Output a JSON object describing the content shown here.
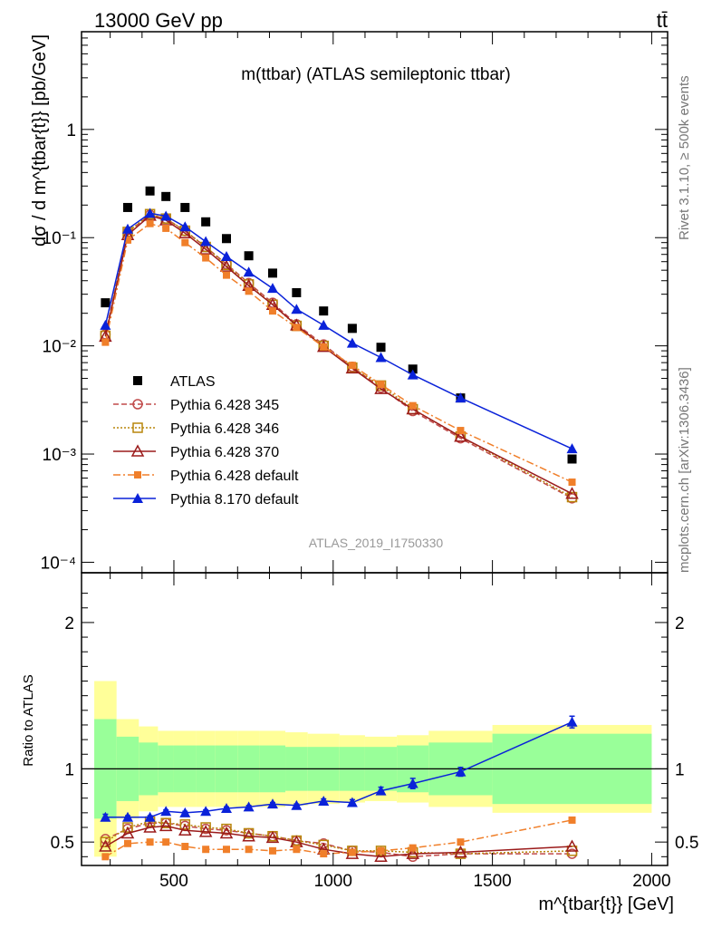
{
  "header": {
    "left_label": "13000 GeV pp",
    "right_label": "tt̄"
  },
  "side_labels": {
    "rivet": "Rivet 3.1.10, ≥ 500k events",
    "mcplots": "mcplots.cern.ch [arXiv:1306.3436]"
  },
  "chart_data": [
    {
      "type": "scatter",
      "title": "m(ttbar) (ATLAS semileptonic ttbar)",
      "watermark": "ATLAS_2019_I1750330",
      "ylabel": "dσ / d m^{tbar{t}} [pb/GeV]",
      "xlabel": "m^{tbar{t}} [GeV]",
      "y_scale": "log",
      "ylim": [
        8e-05,
        8
      ],
      "xlim": [
        210,
        2050
      ],
      "yticks": [
        {
          "value": 0.0001,
          "label": "10⁻⁴"
        },
        {
          "value": 0.001,
          "label": "10⁻³"
        },
        {
          "value": 0.01,
          "label": "10⁻²"
        },
        {
          "value": 0.1,
          "label": "10⁻¹"
        },
        {
          "value": 1,
          "label": "1"
        }
      ],
      "x": [
        285,
        355,
        425,
        475,
        535,
        600,
        665,
        735,
        810,
        885,
        970,
        1060,
        1150,
        1250,
        1400,
        1750
      ],
      "legend_position": "lower-left",
      "series": [
        {
          "name": "ATLAS",
          "color": "#000000",
          "marker": "square-filled",
          "line": "none",
          "values": [
            0.025,
            0.19,
            0.27,
            0.24,
            0.19,
            0.14,
            0.098,
            0.068,
            0.047,
            0.031,
            0.021,
            0.0145,
            0.0097,
            0.0061,
            0.0033,
            0.0009
          ]
        },
        {
          "name": "Pythia 6.428 345",
          "color": "#c04a4a",
          "marker": "circle-open",
          "line": "dashed",
          "values": [
            0.0128,
            0.112,
            0.163,
            0.15,
            0.115,
            0.082,
            0.057,
            0.038,
            0.025,
            0.0158,
            0.0103,
            0.0064,
            0.0041,
            0.0025,
            0.0014,
            0.00039
          ]
        },
        {
          "name": "Pythia 6.428 346",
          "color": "#b8860b",
          "marker": "square-open",
          "line": "dotted",
          "values": [
            0.0124,
            0.113,
            0.165,
            0.15,
            0.116,
            0.082,
            0.056,
            0.037,
            0.024,
            0.0153,
            0.01,
            0.0063,
            0.0043,
            0.0026,
            0.00145,
            0.0004
          ]
        },
        {
          "name": "Pythia 6.428 370",
          "color": "#9b1b1b",
          "marker": "triangle-open",
          "line": "solid",
          "values": [
            0.0122,
            0.106,
            0.16,
            0.145,
            0.11,
            0.078,
            0.054,
            0.036,
            0.024,
            0.0155,
            0.0098,
            0.0062,
            0.004,
            0.0026,
            0.00145,
            0.00043
          ]
        },
        {
          "name": "Pythia 6.428 default",
          "color": "#f07f2a",
          "marker": "square-filled-small",
          "line": "dashdot",
          "values": [
            0.0108,
            0.095,
            0.135,
            0.122,
            0.09,
            0.065,
            0.045,
            0.032,
            0.021,
            0.0148,
            0.0098,
            0.0066,
            0.0044,
            0.0028,
            0.00165,
            0.00055
          ]
        },
        {
          "name": "Pythia 8.170 default",
          "color": "#0a22d9",
          "marker": "triangle-filled",
          "line": "solid",
          "values": [
            0.0155,
            0.12,
            0.168,
            0.158,
            0.126,
            0.092,
            0.067,
            0.048,
            0.034,
            0.0218,
            0.0155,
            0.0106,
            0.0078,
            0.0054,
            0.0033,
            0.00112
          ]
        }
      ]
    },
    {
      "type": "line",
      "ylabel": "Ratio to ATLAS",
      "xlabel": "m^{tbar{t}} [GeV]",
      "xlim": [
        210,
        2050
      ],
      "ylim": [
        0.34,
        2.34
      ],
      "xticks": [
        500,
        1000,
        1500,
        2000
      ],
      "yticks": [
        0.5,
        1,
        2
      ],
      "reference_line": 1,
      "bin_edges": [
        250,
        320,
        390,
        450,
        500,
        570,
        630,
        700,
        770,
        850,
        920,
        1020,
        1100,
        1200,
        1300,
        1500,
        2000
      ],
      "uncertainty_bands": {
        "outer_color": "#ffff99",
        "inner_color": "#99ff99",
        "outer_half_width": [
          0.6,
          0.34,
          0.29,
          0.26,
          0.26,
          0.26,
          0.26,
          0.26,
          0.26,
          0.25,
          0.24,
          0.23,
          0.22,
          0.23,
          0.26,
          0.3
        ],
        "inner_half_width": [
          0.34,
          0.22,
          0.18,
          0.16,
          0.16,
          0.16,
          0.16,
          0.16,
          0.16,
          0.15,
          0.15,
          0.15,
          0.15,
          0.16,
          0.18,
          0.24
        ]
      },
      "x": [
        285,
        355,
        425,
        475,
        535,
        600,
        665,
        735,
        810,
        885,
        970,
        1060,
        1150,
        1250,
        1400,
        1750
      ],
      "series": [
        {
          "name": "Pythia 6.428 345",
          "values": [
            0.52,
            0.59,
            0.63,
            0.63,
            0.61,
            0.59,
            0.58,
            0.56,
            0.54,
            0.51,
            0.49,
            0.44,
            0.43,
            0.4,
            0.42,
            0.42
          ]
        },
        {
          "name": "Pythia 6.428 346",
          "values": [
            0.5,
            0.6,
            0.64,
            0.63,
            0.62,
            0.6,
            0.59,
            0.56,
            0.54,
            0.51,
            0.48,
            0.44,
            0.44,
            0.43,
            0.42,
            0.44
          ]
        },
        {
          "name": "Pythia 6.428 370",
          "values": [
            0.47,
            0.56,
            0.6,
            0.61,
            0.58,
            0.57,
            0.56,
            0.54,
            0.53,
            0.5,
            0.45,
            0.42,
            0.4,
            0.42,
            0.43,
            0.47
          ]
        },
        {
          "name": "Pythia 6.428 default",
          "values": [
            0.4,
            0.49,
            0.5,
            0.5,
            0.47,
            0.45,
            0.45,
            0.45,
            0.44,
            0.45,
            0.42,
            0.43,
            0.44,
            0.46,
            0.5,
            0.65
          ]
        },
        {
          "name": "Pythia 8.170 default",
          "values": [
            0.67,
            0.67,
            0.67,
            0.71,
            0.7,
            0.71,
            0.73,
            0.74,
            0.76,
            0.75,
            0.78,
            0.77,
            0.85,
            0.9,
            0.98,
            1.32
          ],
          "errors": [
            0.02,
            0.01,
            0.01,
            0.01,
            0.01,
            0.01,
            0.01,
            0.01,
            0.01,
            0.01,
            0.015,
            0.02,
            0.025,
            0.035,
            0.03,
            0.04
          ]
        }
      ]
    }
  ]
}
